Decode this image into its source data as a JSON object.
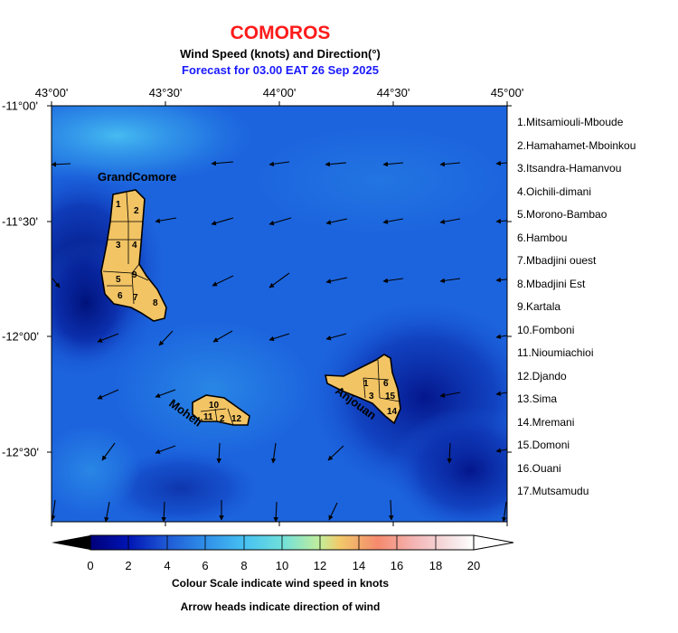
{
  "header": {
    "title": "COMOROS",
    "subtitle": "Wind Speed (knots) and Direction(°)",
    "forecast": "Forecast for  03.00 EAT 26 Sep 2025"
  },
  "axes": {
    "lon_labels": [
      {
        "label": "43°00'",
        "lon": 43.0
      },
      {
        "label": "43°30'",
        "lon": 43.5
      },
      {
        "label": "44°00'",
        "lon": 44.0
      },
      {
        "label": "44°30'",
        "lon": 44.5
      },
      {
        "label": "45°00'",
        "lon": 45.0
      }
    ],
    "lat_labels": [
      {
        "label": "-11°00'",
        "lat": -11.0
      },
      {
        "label": "-11°30'",
        "lat": -11.5
      },
      {
        "label": "-12°00'",
        "lat": -12.0
      },
      {
        "label": "-12°30'",
        "lat": -12.5
      }
    ],
    "lon_range": [
      43.0,
      45.0
    ],
    "lat_range": [
      -11.0,
      -12.8
    ]
  },
  "islands": {
    "grand_comore": "GrandComore",
    "moheli": "Moheli",
    "anjouan": "Anjouan"
  },
  "region_numbers": {
    "grand_comore": [
      "1",
      "2",
      "3",
      "4",
      "5",
      "9",
      "6",
      "7",
      "8"
    ],
    "moheli": [
      "10",
      "11",
      "2",
      "12"
    ],
    "anjouan": [
      "1",
      "6",
      "3",
      "15",
      "14"
    ]
  },
  "legend": [
    "1.Mitsamiouli-Mboude",
    "2.Hamahamet-Mboinkou",
    "3.Itsandra-Hamanvou",
    "4.Oichili-dimani",
    "5.Morono-Bambao",
    "6.Hambou",
    "7.Mbadjini ouest",
    "8.Mbadjini Est",
    "9.Kartala",
    "10.Fomboni",
    "11.Nioumiachioi",
    "12.Djando",
    "13.Sima",
    "14.Mremani",
    "15.Domoni",
    "16.Ouani",
    "17.Mutsamudu"
  ],
  "colorbar": {
    "ticks": [
      "0",
      "2",
      "4",
      "6",
      "8",
      "10",
      "12",
      "14",
      "16",
      "18",
      "20"
    ],
    "range": [
      0,
      20
    ],
    "unit": "knots",
    "colors": [
      "#00007a",
      "#0014b4",
      "#1f5ad6",
      "#2f8fe8",
      "#46c0f2",
      "#6fe0dc",
      "#c4ee9a",
      "#f2c96a",
      "#f58a6e",
      "#f4b7b8",
      "#f6e6e8",
      "#ffffff"
    ]
  },
  "captions": {
    "colorbar": "Colour Scale indicate wind speed in knots",
    "arrows": "Arrow heads indicate direction of wind"
  },
  "colors": {
    "title": "#ff1a1a",
    "forecast": "#1a1aff",
    "land": "#f2c464",
    "field_low": "#001a8c",
    "field_mid": "#1a6ae0",
    "field_high": "#3fb0f0"
  }
}
